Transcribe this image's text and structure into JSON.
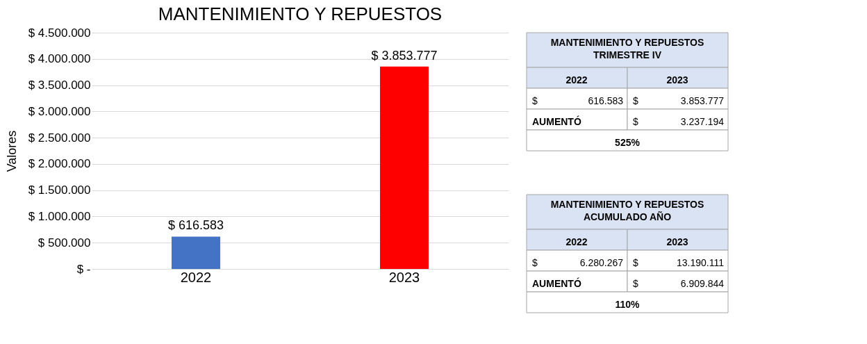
{
  "chart_data": [
    {
      "type": "bar",
      "title": "MANTENIMIENTO Y REPUESTOS",
      "ylabel": "Valores",
      "categories": [
        "2022",
        "2023"
      ],
      "values": [
        616583,
        3853777
      ],
      "colors": [
        "#4472c4",
        "#ff0000"
      ],
      "value_labels": [
        "$ 616.583",
        "$ 3.853.777"
      ],
      "ylim": [
        0,
        4500000
      ],
      "yticks": [
        {
          "value": 0,
          "label": "$ -"
        },
        {
          "value": 500000,
          "label": "$ 500.000"
        },
        {
          "value": 1000000,
          "label": "$ 1.000.000"
        },
        {
          "value": 1500000,
          "label": "$ 1.500.000"
        },
        {
          "value": 2000000,
          "label": "$ 2.000.000"
        },
        {
          "value": 2500000,
          "label": "$ 2.500.000"
        },
        {
          "value": 3000000,
          "label": "$ 3.000.000"
        },
        {
          "value": 3500000,
          "label": "$ 3.500.000"
        },
        {
          "value": 4000000,
          "label": "$ 4.000.000"
        },
        {
          "value": 4500000,
          "label": "$ 4.500.000"
        }
      ],
      "grid": "y"
    },
    {
      "type": "other",
      "annotations": [
        "MANTENIMIENTO Y REPUESTOS\nTRIMESTRE IV",
        "2022",
        "2023",
        "$",
        "616.583",
        "$",
        "3.853.777",
        "AUMENTÓ",
        "$",
        "3.237.194",
        "525%"
      ]
    },
    {
      "type": "other",
      "annotations": [
        "MANTENIMIENTO Y REPUESTOS\nACUMULADO AÑO",
        "2022",
        "2023",
        "$",
        "6.280.267",
        "$",
        "13.190.111",
        "AUMENTÓ",
        "$",
        "6.909.844",
        "110%"
      ]
    }
  ]
}
